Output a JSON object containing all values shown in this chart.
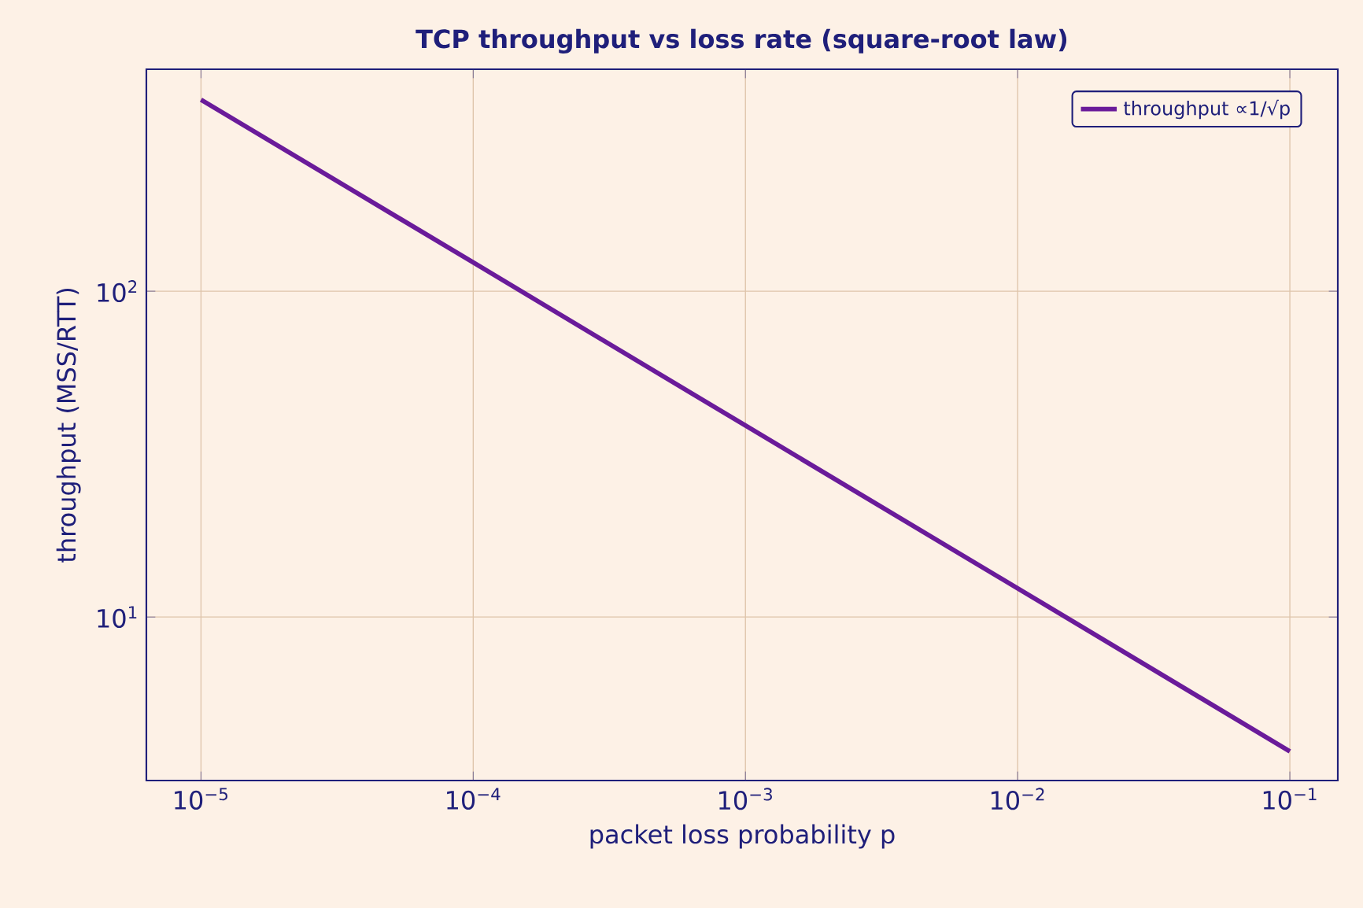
{
  "chart_data": {
    "type": "line",
    "title": "TCP throughput vs loss rate (square-root law)",
    "xlabel": "packet loss probability  p",
    "ylabel": "throughput  (MSS/RTT)",
    "x": [
      1e-05,
      0.0001,
      0.001,
      0.01,
      0.1
    ],
    "series": [
      {
        "name": "throughput ∝1/√p",
        "color": "#6a1b9a",
        "values": [
          387,
          122.5,
          38.7,
          12.25,
          3.87
        ]
      }
    ],
    "log": "xy",
    "xlim": [
      6.3e-06,
      0.15
    ],
    "ylim": [
      3.15,
      480
    ],
    "xticks": [
      {
        "value": 1e-05,
        "label": "10$^{−5}$"
      },
      {
        "value": 0.0001,
        "label": "10$^{−4}$"
      },
      {
        "value": 0.001,
        "label": "10$^{−3}$"
      },
      {
        "value": 0.01,
        "label": "10$^{−2}$"
      },
      {
        "value": 0.1,
        "label": "10$^{−1}$"
      }
    ],
    "yticks": [
      {
        "value": 10,
        "label": "10$^{1}$"
      },
      {
        "value": 100,
        "label": "10$^{2}$"
      }
    ],
    "grid": true,
    "legend": "top right",
    "marker": "none",
    "line_style": "solid"
  }
}
